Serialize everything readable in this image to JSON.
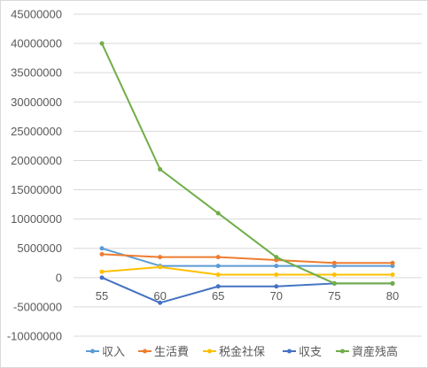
{
  "chart_data": {
    "type": "line",
    "title": "",
    "xlabel": "",
    "ylabel": "",
    "categories": [
      "55",
      "60",
      "65",
      "70",
      "75",
      "80"
    ],
    "ylim": [
      -10000000,
      45000000
    ],
    "y_ticks": [
      45000000,
      40000000,
      35000000,
      30000000,
      25000000,
      20000000,
      15000000,
      10000000,
      5000000,
      0,
      -5000000,
      -10000000
    ],
    "y_tick_labels": [
      "45000000",
      "40000000",
      "35000000",
      "30000000",
      "25000000",
      "20000000",
      "15000000",
      "10000000",
      "5000000",
      "0",
      "-5000000",
      "-10000000"
    ],
    "grid": true,
    "legend_position": "bottom",
    "series": [
      {
        "name": "収入",
        "color": "#5b9bd5",
        "values": [
          5000000,
          2000000,
          2000000,
          2000000,
          2000000,
          2000000
        ]
      },
      {
        "name": "生活費",
        "color": "#ed7d31",
        "values": [
          4000000,
          3500000,
          3500000,
          3000000,
          2500000,
          2500000
        ]
      },
      {
        "name": "税金社保",
        "color": "#ffc000",
        "values": [
          1000000,
          1800000,
          500000,
          500000,
          500000,
          500000
        ]
      },
      {
        "name": "収支",
        "color": "#4472c4",
        "values": [
          0,
          -4300000,
          -1500000,
          -1500000,
          -1000000,
          -1000000
        ]
      },
      {
        "name": "資産残高",
        "color": "#70ad47",
        "values": [
          40000000,
          18500000,
          11000000,
          3500000,
          -1000000,
          -1000000
        ]
      }
    ]
  }
}
